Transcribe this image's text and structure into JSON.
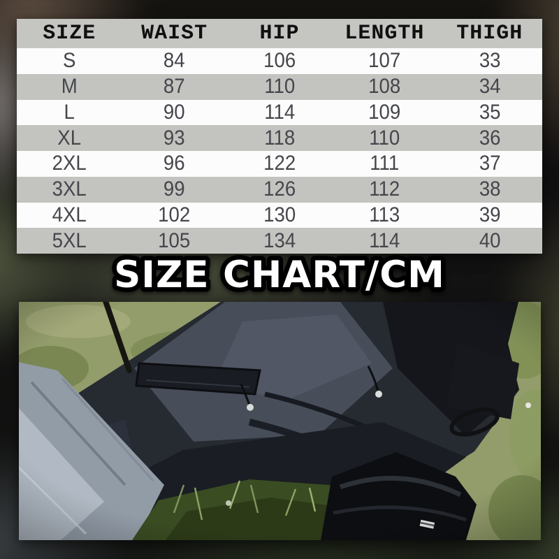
{
  "chart_data": {
    "type": "table",
    "title": "SIZE CHART/CM",
    "columns": [
      "SIZE",
      "WAIST",
      "HIP",
      "LENGTH",
      "THIGH"
    ],
    "rows": [
      [
        "S",
        "84",
        "106",
        "107",
        "33"
      ],
      [
        "M",
        "87",
        "110",
        "108",
        "34"
      ],
      [
        "L",
        "90",
        "114",
        "109",
        "35"
      ],
      [
        "XL",
        "93",
        "118",
        "110",
        "36"
      ],
      [
        "2XL",
        "96",
        "122",
        "111",
        "37"
      ],
      [
        "3XL",
        "99",
        "126",
        "112",
        "38"
      ],
      [
        "4XL",
        "102",
        "130",
        "113",
        "39"
      ],
      [
        "5XL",
        "105",
        "134",
        "114",
        "40"
      ]
    ]
  },
  "photo": {
    "alt": "Person kneeling on grass wearing black cargo pants with knee pocket flap, drawcord aglets and black boot; gray jacket fabric at lower left, thin dark pole at upper left"
  },
  "colors": {
    "row_gray": "#c3c4c0",
    "row_white": "#fcfcfc",
    "header_bg": "#c5c6c2",
    "header_text": "#101010",
    "cell_text": "#44464b",
    "title_fill": "#ffffff",
    "title_stroke": "#000000"
  }
}
